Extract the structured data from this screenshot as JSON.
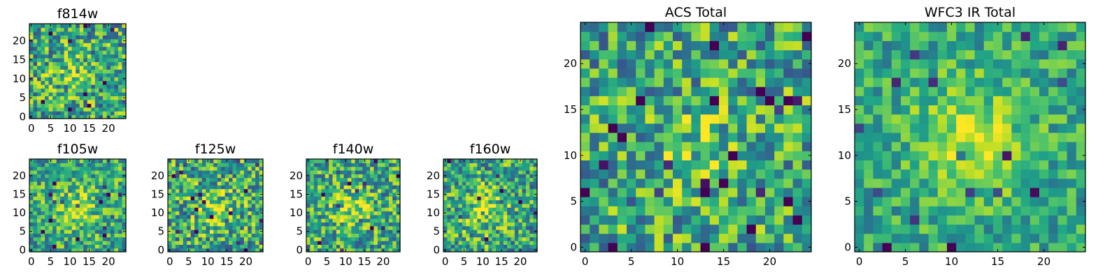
{
  "chart_data": [
    {
      "type": "heatmap",
      "title": "f814w",
      "colormap": "viridis",
      "grid_size": 25,
      "xticks": [
        0,
        5,
        10,
        15,
        20
      ],
      "yticks": [
        0,
        5,
        10,
        15,
        20
      ],
      "xlim": [
        -0.5,
        24.5
      ],
      "ylim": [
        -0.5,
        24.5
      ],
      "seed": 11,
      "noise": 0.45,
      "blob": 0.35,
      "hotspot": {
        "x": 11,
        "y": 11,
        "sigma": 3.5
      }
    },
    {
      "type": "heatmap",
      "title": "f105w",
      "colormap": "viridis",
      "grid_size": 25,
      "xticks": [
        0,
        5,
        10,
        15,
        20
      ],
      "yticks": [
        0,
        5,
        10,
        15,
        20
      ],
      "xlim": [
        -0.5,
        24.5
      ],
      "ylim": [
        -0.5,
        24.5
      ],
      "seed": 23,
      "noise": 0.38,
      "blob": 0.55,
      "hotspot": {
        "x": 11,
        "y": 11,
        "sigma": 4
      }
    },
    {
      "type": "heatmap",
      "title": "f125w",
      "colormap": "viridis",
      "grid_size": 25,
      "xticks": [
        0,
        5,
        10,
        15,
        20
      ],
      "yticks": [
        0,
        5,
        10,
        15,
        20
      ],
      "xlim": [
        -0.5,
        24.5
      ],
      "ylim": [
        -0.5,
        24.5
      ],
      "seed": 37,
      "noise": 0.45,
      "blob": 0.5,
      "hotspot": {
        "x": 12,
        "y": 11,
        "sigma": 3.5
      }
    },
    {
      "type": "heatmap",
      "title": "f140w",
      "colormap": "viridis",
      "grid_size": 25,
      "xticks": [
        0,
        5,
        10,
        15,
        20
      ],
      "yticks": [
        0,
        5,
        10,
        15,
        20
      ],
      "xlim": [
        -0.5,
        24.5
      ],
      "ylim": [
        -0.5,
        24.5
      ],
      "seed": 41,
      "noise": 0.42,
      "blob": 0.55,
      "hotspot": {
        "x": 12,
        "y": 11,
        "sigma": 3.5
      }
    },
    {
      "type": "heatmap",
      "title": "f160w",
      "colormap": "viridis",
      "grid_size": 25,
      "xticks": [
        0,
        5,
        10,
        15,
        20
      ],
      "yticks": [
        0,
        5,
        10,
        15,
        20
      ],
      "xlim": [
        -0.5,
        24.5
      ],
      "ylim": [
        -0.5,
        24.5
      ],
      "seed": 53,
      "noise": 0.42,
      "blob": 0.5,
      "hotspot": {
        "x": 11,
        "y": 11,
        "sigma": 4
      }
    },
    {
      "type": "heatmap",
      "title": "ACS Total",
      "colormap": "viridis",
      "grid_size": 25,
      "xticks": [
        0,
        5,
        10,
        15,
        20
      ],
      "yticks": [
        0,
        5,
        10,
        15,
        20
      ],
      "xlim": [
        -0.5,
        24.5
      ],
      "ylim": [
        -0.5,
        24.5
      ],
      "seed": 67,
      "noise": 0.42,
      "blob": 0.35,
      "hotspot": {
        "x": 12,
        "y": 11,
        "sigma": 3
      }
    },
    {
      "type": "heatmap",
      "title": "WFC3 IR Total",
      "colormap": "viridis",
      "grid_size": 25,
      "xticks": [
        0,
        5,
        10,
        15,
        20
      ],
      "yticks": [
        0,
        5,
        10,
        15,
        20
      ],
      "xlim": [
        -0.5,
        24.5
      ],
      "ylim": [
        -0.5,
        24.5
      ],
      "seed": 79,
      "noise": 0.28,
      "blob": 0.65,
      "hotspot": {
        "x": 12,
        "y": 12,
        "sigma": 4
      }
    }
  ]
}
